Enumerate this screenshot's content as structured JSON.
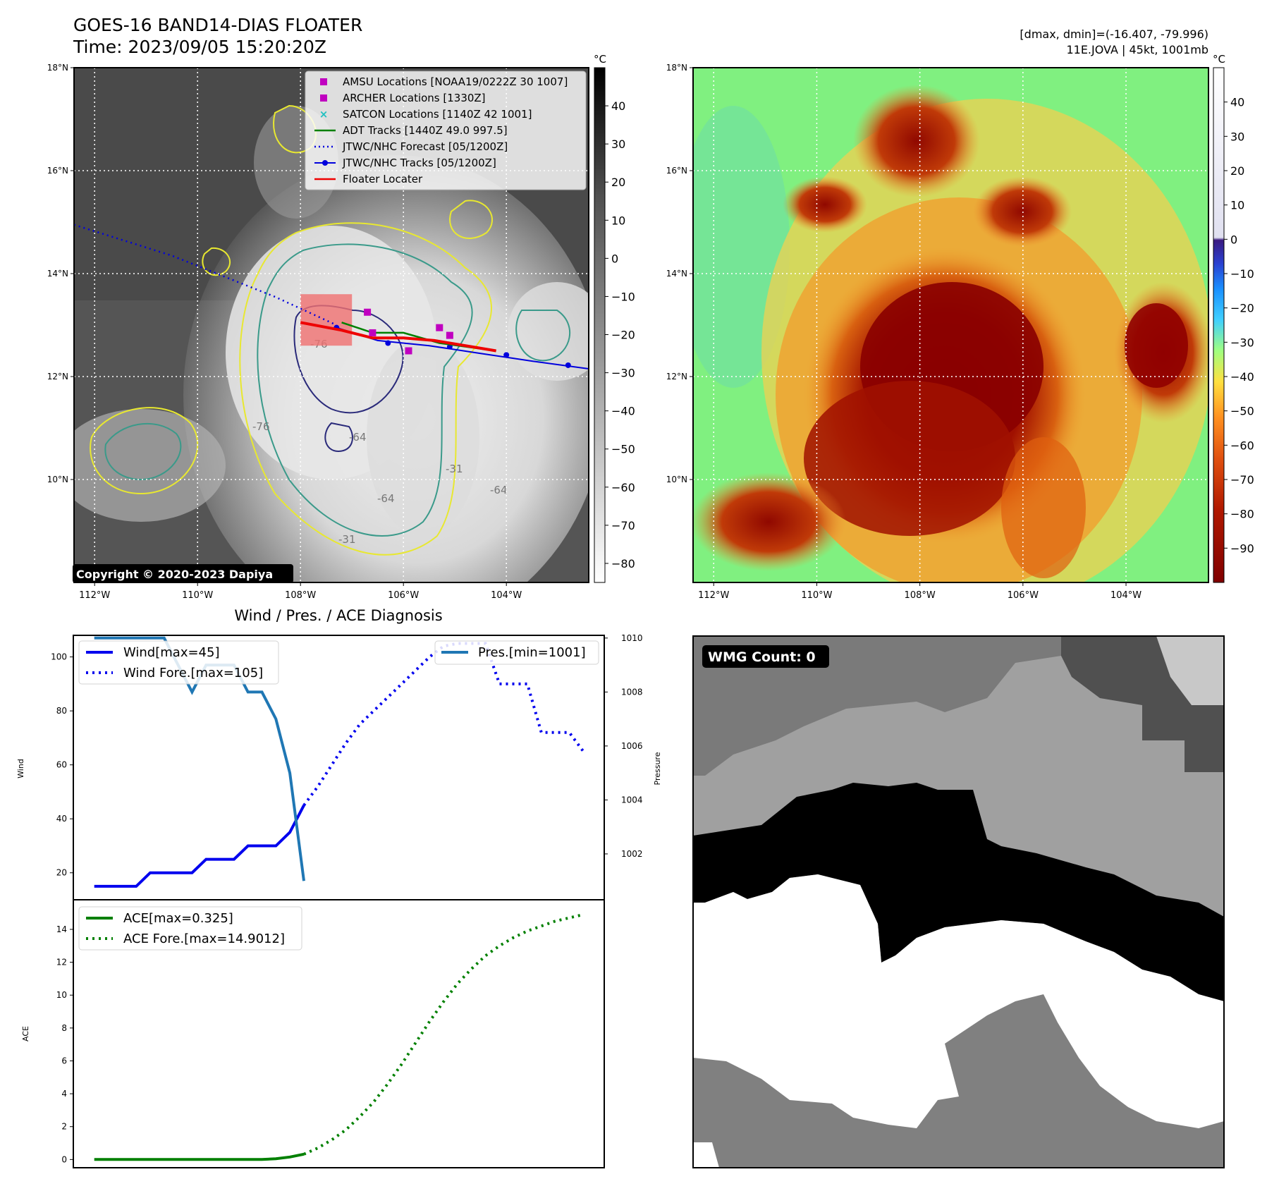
{
  "header": {
    "title_line1": "GOES-16 BAND14-DIAS FLOATER",
    "title_line2": "Time: 2023/09/05 15:20:20Z",
    "right_line1": "[dmax, dmin]=(-16.407, -79.996)",
    "right_line2": "11E.JOVA | 45kt, 1001mb"
  },
  "colors": {
    "amsu": "#c000c0",
    "archer": "#c000c0",
    "satcon": "#20c0c0",
    "adt": "#008000",
    "forecast": "#0000dd",
    "tracks": "#0000dd",
    "floater": "#ee0000",
    "wind": "#0000ee",
    "pressure": "#1f77b4",
    "ace": "#008000"
  },
  "map": {
    "lon_labels": [
      "112°W",
      "110°W",
      "108°W",
      "106°W",
      "104°W"
    ],
    "lat_labels": [
      "18°N",
      "16°N",
      "14°N",
      "12°N",
      "10°N"
    ],
    "lon_range": [
      -112.4,
      -102.4
    ],
    "lat_range": [
      8.0,
      18.0
    ],
    "copyright": "Copyright © 2020-2023 Dapiya",
    "contour_labels": [
      "-76",
      "-31",
      "-64",
      "-31",
      "-64",
      "-64",
      "-76"
    ],
    "floater_box": {
      "lon": [
        -108.0,
        -107.0
      ],
      "lat": [
        12.6,
        13.6
      ]
    },
    "legend": [
      {
        "label": "AMSU Locations [NOAA19/0222Z 30 1007]",
        "kind": "square",
        "color_key": "amsu"
      },
      {
        "label": "ARCHER Locations [1330Z]",
        "kind": "square",
        "color_key": "archer"
      },
      {
        "label": "SATCON Locations [1140Z 42 1001]",
        "kind": "x",
        "color_key": "satcon"
      },
      {
        "label": "ADT Tracks [1440Z 49.0 997.5]",
        "kind": "line",
        "color_key": "adt"
      },
      {
        "label": "JTWC/NHC Forecast [05/1200Z]",
        "kind": "dotted",
        "color_key": "forecast"
      },
      {
        "label": "JTWC/NHC Tracks [05/1200Z]",
        "kind": "linedot",
        "color_key": "tracks"
      },
      {
        "label": "Floater Locater",
        "kind": "line",
        "color_key": "floater"
      }
    ],
    "amsu_points": [
      [
        -106.7,
        13.25
      ]
    ],
    "archer_points": [
      [
        -106.6,
        12.85
      ],
      [
        -105.9,
        12.5
      ],
      [
        -105.3,
        12.95
      ],
      [
        -105.1,
        12.8
      ]
    ],
    "forecast_track": [
      [
        -112.4,
        14.95
      ],
      [
        -110.5,
        14.35
      ],
      [
        -108.5,
        13.55
      ],
      [
        -107.3,
        13.0
      ]
    ],
    "best_track": [
      [
        -107.3,
        12.95
      ],
      [
        -106.5,
        12.7
      ],
      [
        -105.5,
        12.6
      ],
      [
        -104.5,
        12.45
      ],
      [
        -103.5,
        12.3
      ],
      [
        -102.4,
        12.15
      ]
    ],
    "best_track_points": [
      [
        -107.3,
        12.95
      ],
      [
        -106.3,
        12.65
      ],
      [
        -105.1,
        12.58
      ],
      [
        -104.0,
        12.42
      ],
      [
        -102.8,
        12.22
      ]
    ],
    "adt_track": [
      [
        -107.2,
        13.05
      ],
      [
        -106.6,
        12.85
      ],
      [
        -106.0,
        12.85
      ],
      [
        -105.3,
        12.65
      ],
      [
        -104.2,
        12.5
      ]
    ],
    "floater_track": [
      [
        -108.0,
        13.05
      ],
      [
        -107.2,
        12.9
      ],
      [
        -106.6,
        12.75
      ],
      [
        -106.0,
        12.75
      ],
      [
        -105.4,
        12.7
      ],
      [
        -104.2,
        12.5
      ]
    ]
  },
  "colorbar_left": {
    "unit": "°C",
    "ticks": [
      "40",
      "30",
      "20",
      "10",
      "0",
      "−10",
      "−20",
      "−30",
      "−40",
      "−50",
      "−60",
      "−70",
      "−80"
    ],
    "tick_values": [
      40,
      30,
      20,
      10,
      0,
      -10,
      -20,
      -30,
      -40,
      -50,
      -60,
      -70,
      -80
    ],
    "range": [
      -85,
      50
    ]
  },
  "colorbar_right": {
    "unit": "°C",
    "ticks": [
      "40",
      "30",
      "20",
      "10",
      "0",
      "−10",
      "−20",
      "−30",
      "−40",
      "−50",
      "−60",
      "−70",
      "−80",
      "−90"
    ],
    "tick_values": [
      40,
      30,
      20,
      10,
      0,
      -10,
      -20,
      -30,
      -40,
      -50,
      -60,
      -70,
      -80,
      -90
    ],
    "range": [
      -100,
      50
    ]
  },
  "wmg": {
    "label": "WMG Count: 0"
  },
  "chart_data": [
    {
      "type": "line",
      "title": "Wind / Pres. / ACE Diagnosis",
      "ylabel": "Wind",
      "y2label": "Pressure",
      "ylim": [
        10,
        108
      ],
      "y2lim": [
        1000.3,
        1010.1
      ],
      "xlim": [
        -1.5,
        36.5
      ],
      "yticks": [
        "20",
        "40",
        "60",
        "80",
        "100"
      ],
      "y2ticks": [
        "1002",
        "1004",
        "1006",
        "1008",
        "1010"
      ],
      "legend_left": [
        "Wind[max=45]",
        "Wind Fore.[max=105]"
      ],
      "legend_right": [
        "Pres.[min=1001]"
      ],
      "series": [
        {
          "name": "Wind[max=45]",
          "axis": "left",
          "style": "solid",
          "x": [
            0,
            1,
            2,
            3,
            4,
            5,
            6,
            7,
            8,
            9,
            10,
            11,
            12,
            13,
            14,
            15
          ],
          "values": [
            15,
            15,
            15,
            15,
            20,
            20,
            20,
            20,
            25,
            25,
            25,
            30,
            30,
            30,
            35,
            45
          ]
        },
        {
          "name": "Wind Fore.[max=105]",
          "axis": "left",
          "style": "dotted",
          "x": [
            15,
            16,
            17,
            18,
            19,
            20,
            21,
            22,
            23,
            24,
            25,
            26,
            27,
            28,
            29,
            30,
            31,
            32,
            33,
            34,
            35
          ],
          "values": [
            45,
            52,
            60,
            68,
            75,
            80,
            85,
            90,
            95,
            100,
            104,
            105,
            105,
            105,
            90,
            90,
            90,
            72,
            72,
            72,
            65
          ]
        },
        {
          "name": "Pres.[min=1001]",
          "axis": "right",
          "style": "solid",
          "x": [
            0,
            1,
            2,
            3,
            4,
            5,
            6,
            7,
            8,
            9,
            10,
            11,
            12,
            13,
            14,
            15
          ],
          "values": [
            1010,
            1010,
            1010,
            1010,
            1010,
            1010,
            1009,
            1008,
            1009,
            1009,
            1009,
            1008,
            1008,
            1007,
            1005,
            1001
          ]
        }
      ]
    },
    {
      "type": "line",
      "ylabel": "ACE",
      "ylim": [
        -0.5,
        15.8
      ],
      "xlim": [
        -1.5,
        36.5
      ],
      "yticks": [
        "0",
        "2",
        "4",
        "6",
        "8",
        "10",
        "12",
        "14"
      ],
      "legend": [
        "ACE[max=0.325]",
        "ACE Fore.[max=14.9012]"
      ],
      "series": [
        {
          "name": "ACE[max=0.325]",
          "style": "solid",
          "x": [
            0,
            2,
            4,
            6,
            8,
            10,
            12,
            13,
            14,
            15
          ],
          "values": [
            0,
            0,
            0,
            0,
            0,
            0,
            0,
            0.05,
            0.15,
            0.325
          ]
        },
        {
          "name": "ACE Fore.[max=14.9012]",
          "style": "dotted",
          "x": [
            15,
            16,
            17,
            18,
            19,
            20,
            21,
            22,
            23,
            24,
            25,
            26,
            27,
            28,
            29,
            30,
            31,
            32,
            33,
            34,
            35
          ],
          "values": [
            0.325,
            0.7,
            1.2,
            1.8,
            2.6,
            3.5,
            4.6,
            5.8,
            7.1,
            8.4,
            9.6,
            10.7,
            11.6,
            12.4,
            13.0,
            13.5,
            13.9,
            14.2,
            14.5,
            14.7,
            14.9012
          ]
        }
      ]
    }
  ]
}
